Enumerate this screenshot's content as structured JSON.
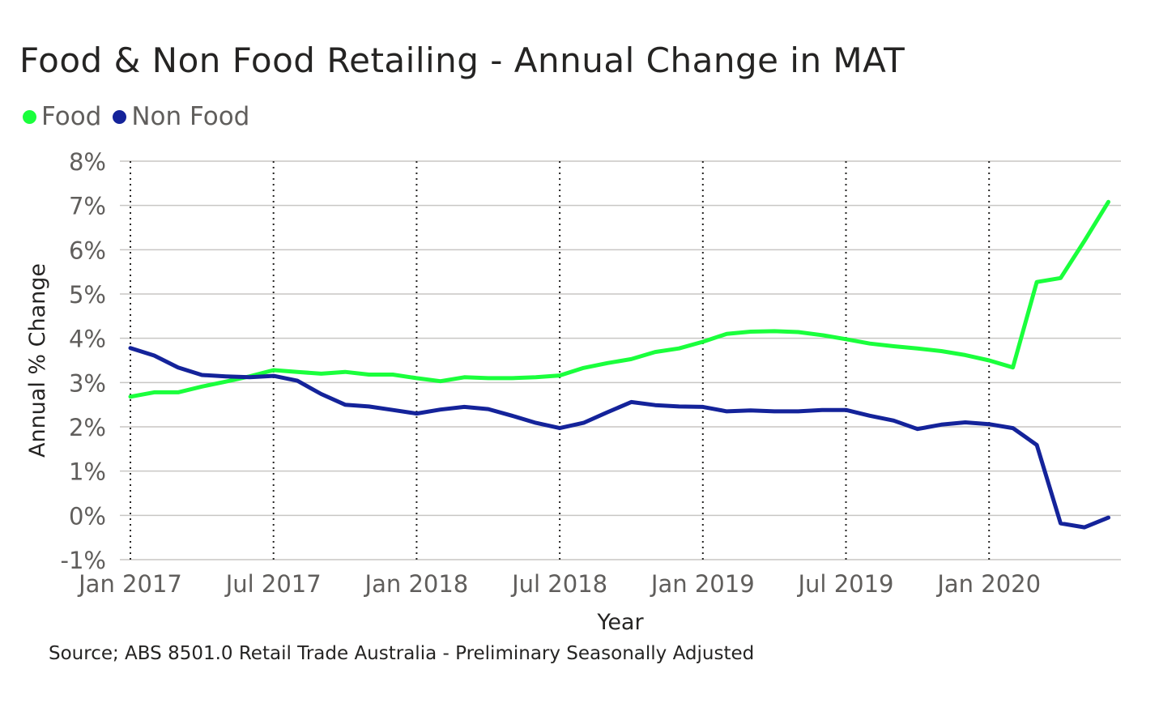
{
  "title": "Food & Non Food Retailing - Annual Change in MAT",
  "source": "Source; ABS 8501.0 Retail Trade Australia - Preliminary Seasonally Adjusted",
  "colors": {
    "food": "#1aff3c",
    "non_food": "#14239a",
    "grid": "#c8c6c4",
    "tick_text": "#605e5c",
    "axis_title": "#252423"
  },
  "chart_data": {
    "type": "line",
    "title": "Food & Non Food Retailing - Annual Change in MAT",
    "xlabel": "Year",
    "ylabel": "Annual % Change",
    "x_ticks": [
      "Jan 2017",
      "Jul 2017",
      "Jan 2018",
      "Jul 2018",
      "Jan 2019",
      "Jul 2019",
      "Jan 2020"
    ],
    "x_tick_positions": [
      0,
      6,
      12,
      18,
      24,
      30,
      36
    ],
    "y_ticks": [
      "8%",
      "7%",
      "6%",
      "5%",
      "4%",
      "3%",
      "2%",
      "1%",
      "0%",
      "-1%"
    ],
    "ylim": [
      -1,
      8
    ],
    "grid": true,
    "vertical_dotted_gridlines": true,
    "legend_position": "top-left",
    "x": [
      "Jan 2017",
      "Feb 2017",
      "Mar 2017",
      "Apr 2017",
      "May 2017",
      "Jun 2017",
      "Jul 2017",
      "Aug 2017",
      "Sep 2017",
      "Oct 2017",
      "Nov 2017",
      "Dec 2017",
      "Jan 2018",
      "Feb 2018",
      "Mar 2018",
      "Apr 2018",
      "May 2018",
      "Jun 2018",
      "Jul 2018",
      "Aug 2018",
      "Sep 2018",
      "Oct 2018",
      "Nov 2018",
      "Dec 2018",
      "Jan 2019",
      "Feb 2019",
      "Mar 2019",
      "Apr 2019",
      "May 2019",
      "Jun 2019",
      "Jul 2019",
      "Aug 2019",
      "Sep 2019",
      "Oct 2019",
      "Nov 2019",
      "Dec 2019",
      "Jan 2020",
      "Feb 2020",
      "Mar 2020",
      "Apr 2020",
      "May 2020",
      "Jun 2020",
      "Jul 2020"
    ],
    "series": [
      {
        "name": "Food",
        "color": "#1aff3c",
        "values": [
          2.68,
          2.78,
          2.78,
          2.91,
          3.02,
          3.14,
          3.28,
          3.24,
          3.2,
          3.24,
          3.18,
          3.18,
          3.1,
          3.03,
          3.12,
          3.1,
          3.1,
          3.12,
          3.16,
          3.33,
          3.44,
          3.53,
          3.69,
          3.77,
          3.92,
          4.1,
          4.15,
          4.16,
          4.14,
          4.07,
          3.98,
          3.88,
          3.82,
          3.77,
          3.71,
          3.62,
          3.5,
          3.34,
          5.27,
          5.36,
          6.2,
          7.08,
          null
        ],
        "x_offset": 0
      },
      {
        "name": "Non Food",
        "color": "#14239a",
        "values": [
          3.78,
          3.61,
          3.34,
          3.17,
          3.14,
          3.12,
          3.15,
          3.04,
          2.74,
          2.5,
          2.46,
          2.38,
          2.3,
          2.39,
          2.45,
          2.4,
          2.25,
          2.09,
          1.97,
          2.09,
          2.33,
          2.56,
          2.49,
          2.46,
          2.45,
          2.35,
          2.37,
          2.35,
          2.35,
          2.38,
          2.38,
          2.25,
          2.14,
          1.95,
          2.05,
          2.1,
          2.06,
          1.97,
          1.59,
          -0.18,
          -0.27,
          -0.05,
          null
        ],
        "x_offset": 0
      }
    ]
  }
}
